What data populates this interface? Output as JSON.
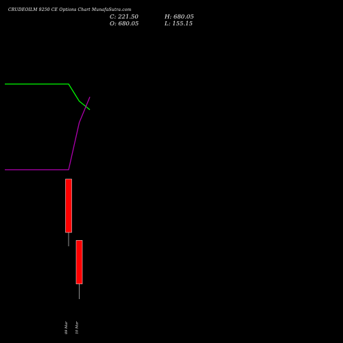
{
  "header": {
    "title": "CRUDEOILM 9250  CE Options  Chart MunafaSutra.com",
    "close": "C: 221.50",
    "open": "O: 680.05",
    "high": "H: 680.05",
    "low": "L: 155.15"
  },
  "chart_data": {
    "type": "candlestick",
    "title": "CRUDEOILM 9250  CE Options  Chart MunafaSutra.com",
    "categories": [
      "09 Mar",
      "10 Mar"
    ],
    "candles": [
      {
        "date": "09 Mar",
        "open": 680.05,
        "high": 680.05,
        "low": 386.0,
        "close": 446.4
      },
      {
        "date": "10 Mar",
        "open": 412.0,
        "high": 412.0,
        "low": 155.15,
        "close": 221.5
      }
    ],
    "overlay_lines": [
      {
        "color": "#00ff00",
        "points": [
          [
            -6,
            110
          ],
          [
            0,
            110
          ],
          [
            1,
            90
          ],
          [
            2,
            80
          ]
        ]
      },
      {
        "color": "#b000b0",
        "points": [
          [
            -6,
            10
          ],
          [
            0,
            10
          ],
          [
            1,
            65
          ],
          [
            2,
            95
          ]
        ]
      }
    ],
    "candle_color": "#ff0000",
    "wick_color": "#bbbbbb",
    "background": "#000000",
    "grid": false
  }
}
